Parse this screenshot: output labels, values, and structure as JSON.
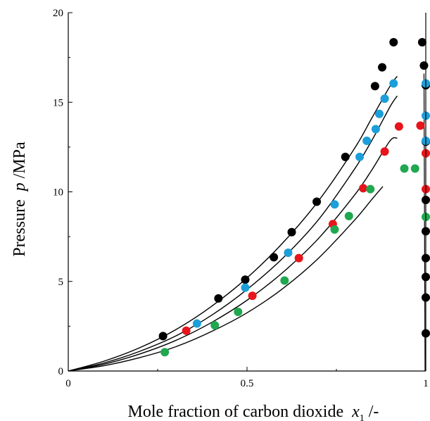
{
  "chart_data": {
    "type": "scatter",
    "xlabel": {
      "text": "Mole fraction of carbon dioxide",
      "symbol": "x",
      "subscript": "1",
      "unit": "/-"
    },
    "ylabel": {
      "text": "Pressure",
      "symbol": "p",
      "unit": "/MPa"
    },
    "xlim": [
      0,
      1
    ],
    "ylim": [
      0,
      20
    ],
    "x_ticks": [
      0,
      0.5,
      1
    ],
    "x_tick_labels": [
      "0",
      "0.5",
      "1"
    ],
    "y_ticks": [
      0,
      5,
      10,
      15,
      20
    ],
    "y_tick_labels": [
      "0",
      "5",
      "10",
      "15",
      "20"
    ],
    "grid": false,
    "legend": "none",
    "series": [
      {
        "color": "#000000",
        "points": [
          [
            0.265,
            1.95
          ],
          [
            0.42,
            4.05
          ],
          [
            0.495,
            5.1
          ],
          [
            0.575,
            6.35
          ],
          [
            0.625,
            7.75
          ],
          [
            0.695,
            9.45
          ],
          [
            0.775,
            11.95
          ],
          [
            0.858,
            15.9
          ],
          [
            0.878,
            16.95
          ],
          [
            0.91,
            18.35
          ]
        ],
        "dew_points": [
          [
            0.99,
            18.35
          ],
          [
            0.995,
            17.05
          ],
          [
            1.0,
            15.95
          ],
          [
            1.0,
            12.8
          ],
          [
            1.0,
            9.55
          ],
          [
            1.0,
            7.8
          ],
          [
            1.0,
            6.3
          ],
          [
            1.0,
            5.25
          ],
          [
            1.0,
            4.1
          ],
          [
            1.0,
            2.1
          ]
        ],
        "curve": [
          [
            0.0,
            0.0
          ],
          [
            0.1,
            0.55
          ],
          [
            0.2,
            1.3
          ],
          [
            0.3,
            2.3
          ],
          [
            0.4,
            3.6
          ],
          [
            0.5,
            5.2
          ],
          [
            0.6,
            7.15
          ],
          [
            0.7,
            9.5
          ],
          [
            0.8,
            12.4
          ],
          [
            0.85,
            14.15
          ],
          [
            0.9,
            15.9
          ],
          [
            0.92,
            16.45
          ]
        ]
      },
      {
        "color": "#1c9ed9",
        "points": [
          [
            0.36,
            2.65
          ],
          [
            0.495,
            4.65
          ],
          [
            0.615,
            6.6
          ],
          [
            0.745,
            9.3
          ],
          [
            0.815,
            11.95
          ],
          [
            0.835,
            12.85
          ],
          [
            0.86,
            13.5
          ],
          [
            0.87,
            14.35
          ],
          [
            0.885,
            15.2
          ],
          [
            0.91,
            16.05
          ]
        ],
        "dew_points": [
          [
            1.0,
            16.05
          ],
          [
            1.0,
            14.25
          ],
          [
            1.0,
            12.85
          ]
        ],
        "curve": [
          [
            0.0,
            0.0
          ],
          [
            0.1,
            0.45
          ],
          [
            0.2,
            1.1
          ],
          [
            0.3,
            1.95
          ],
          [
            0.4,
            3.1
          ],
          [
            0.5,
            4.55
          ],
          [
            0.6,
            6.3
          ],
          [
            0.7,
            8.45
          ],
          [
            0.8,
            11.25
          ],
          [
            0.85,
            12.9
          ],
          [
            0.9,
            14.75
          ],
          [
            0.92,
            15.35
          ]
        ]
      },
      {
        "color": "#e8141b",
        "points": [
          [
            0.33,
            2.25
          ],
          [
            0.515,
            4.2
          ],
          [
            0.645,
            6.3
          ],
          [
            0.74,
            8.2
          ],
          [
            0.825,
            10.2
          ],
          [
            0.885,
            12.25
          ],
          [
            0.925,
            13.65
          ]
        ],
        "dew_points": [
          [
            0.985,
            13.7
          ],
          [
            1.0,
            12.15
          ],
          [
            1.0,
            10.15
          ]
        ],
        "curve": [
          [
            0.0,
            0.0
          ],
          [
            0.1,
            0.38
          ],
          [
            0.2,
            0.95
          ],
          [
            0.3,
            1.7
          ],
          [
            0.4,
            2.7
          ],
          [
            0.5,
            3.95
          ],
          [
            0.6,
            5.5
          ],
          [
            0.7,
            7.4
          ],
          [
            0.8,
            9.8
          ],
          [
            0.85,
            11.25
          ],
          [
            0.9,
            12.85
          ],
          [
            0.92,
            13.0
          ]
        ]
      },
      {
        "color": "#1fa84f",
        "points": [
          [
            0.27,
            1.05
          ],
          [
            0.41,
            2.55
          ],
          [
            0.475,
            3.3
          ],
          [
            0.605,
            5.05
          ],
          [
            0.745,
            7.9
          ],
          [
            0.785,
            8.65
          ],
          [
            0.845,
            10.15
          ],
          [
            0.94,
            11.3
          ]
        ],
        "dew_points": [
          [
            0.97,
            11.3
          ],
          [
            1.0,
            8.6
          ]
        ],
        "curve": [
          [
            0.0,
            0.0
          ],
          [
            0.1,
            0.3
          ],
          [
            0.2,
            0.75
          ],
          [
            0.3,
            1.35
          ],
          [
            0.4,
            2.2
          ],
          [
            0.5,
            3.25
          ],
          [
            0.6,
            4.6
          ],
          [
            0.7,
            6.3
          ],
          [
            0.8,
            8.4
          ],
          [
            0.85,
            9.6
          ],
          [
            0.88,
            10.3
          ]
        ]
      }
    ]
  }
}
